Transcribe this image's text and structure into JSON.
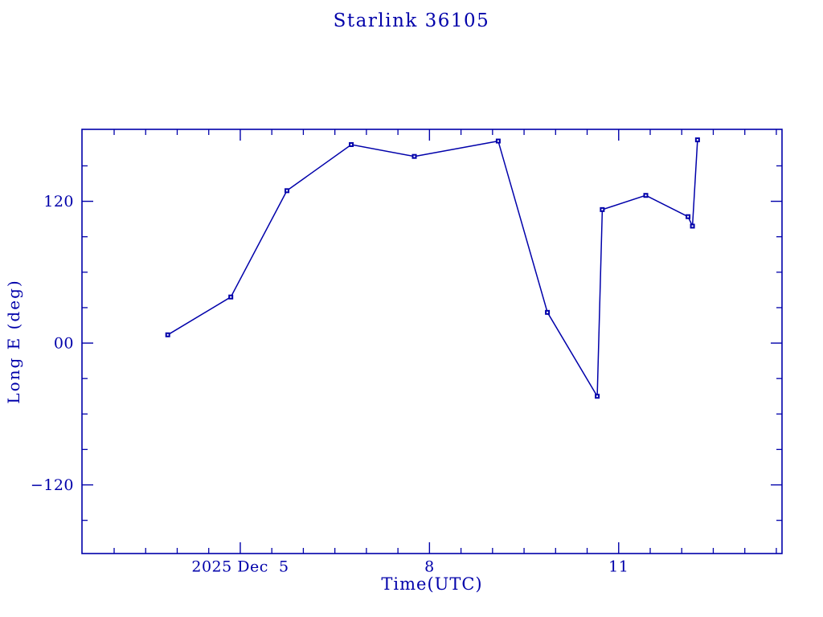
{
  "chart_data": {
    "type": "line",
    "title": "Starlink 36105",
    "xlabel": "Time(UTC)",
    "ylabel": "Long E (deg)",
    "accent_color": "#0000aa",
    "background_color": "#ffffff",
    "grid": false,
    "legend": null,
    "xlim": [
      2.49,
      13.59
    ],
    "ylim": [
      -178.1,
      180.9
    ],
    "x_axis": {
      "unit": "day of 2025 Dec (UTC)",
      "major_ticks": [
        {
          "value": 5,
          "label": "2025 Dec  5"
        },
        {
          "value": 8,
          "label": "8"
        },
        {
          "value": 11,
          "label": "11"
        }
      ],
      "minor_step": 0.5
    },
    "y_axis": {
      "unit": "degrees east longitude",
      "major_ticks": [
        {
          "value": 120,
          "label": "120"
        },
        {
          "value": 0,
          "label": "00"
        },
        {
          "value": -120,
          "label": "−120"
        }
      ],
      "minor_step": 30
    },
    "series": [
      {
        "name": "Long E",
        "marker": "square",
        "points": [
          {
            "x": 3.85,
            "y": 7
          },
          {
            "x": 4.85,
            "y": 39
          },
          {
            "x": 5.74,
            "y": 129
          },
          {
            "x": 6.76,
            "y": 168
          },
          {
            "x": 7.76,
            "y": 158
          },
          {
            "x": 9.09,
            "y": 171
          },
          {
            "x": 9.87,
            "y": 26
          },
          {
            "x": 10.66,
            "y": -45
          },
          {
            "x": 10.74,
            "y": 113
          },
          {
            "x": 11.43,
            "y": 125
          },
          {
            "x": 12.1,
            "y": 107
          },
          {
            "x": 12.17,
            "y": 99
          },
          {
            "x": 12.25,
            "y": 172
          }
        ]
      }
    ]
  }
}
